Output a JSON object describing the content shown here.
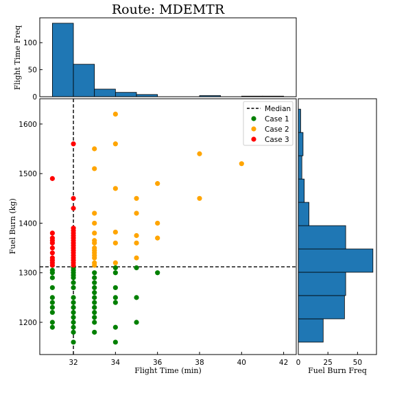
{
  "figure": {
    "title": "Route: MDEMTR"
  },
  "chart_data": [
    {
      "id": "scatter",
      "type": "scatter",
      "xlabel": "Flight Time (min)",
      "ylabel": "Fuel Burn (kg)",
      "xlim": [
        30.4,
        42.6
      ],
      "ylim": [
        1135,
        1651
      ],
      "xticks": [
        32,
        34,
        36,
        38,
        40,
        42
      ],
      "yticks": [
        1200,
        1300,
        1400,
        1500,
        1600
      ],
      "median": {
        "x": 32,
        "y": 1312,
        "label": "Median"
      },
      "legend_position": "top-right",
      "series": [
        {
          "name": "Case 1",
          "color": "#008000",
          "points": [
            [
              31,
              1305
            ],
            [
              31,
              1300
            ],
            [
              31,
              1290
            ],
            [
              31,
              1270
            ],
            [
              31,
              1250
            ],
            [
              31,
              1240
            ],
            [
              31,
              1230
            ],
            [
              31,
              1220
            ],
            [
              31,
              1200
            ],
            [
              31,
              1190
            ],
            [
              32,
              1310
            ],
            [
              32,
              1305
            ],
            [
              32,
              1300
            ],
            [
              32,
              1295
            ],
            [
              32,
              1290
            ],
            [
              32,
              1280
            ],
            [
              32,
              1270
            ],
            [
              32,
              1250
            ],
            [
              32,
              1240
            ],
            [
              32,
              1230
            ],
            [
              32,
              1220
            ],
            [
              32,
              1210
            ],
            [
              32,
              1200
            ],
            [
              32,
              1190
            ],
            [
              32,
              1180
            ],
            [
              32,
              1160
            ],
            [
              33,
              1300
            ],
            [
              33,
              1290
            ],
            [
              33,
              1280
            ],
            [
              33,
              1270
            ],
            [
              33,
              1260
            ],
            [
              33,
              1250
            ],
            [
              33,
              1240
            ],
            [
              33,
              1230
            ],
            [
              33,
              1220
            ],
            [
              33,
              1210
            ],
            [
              33,
              1200
            ],
            [
              33,
              1180
            ],
            [
              34,
              1310
            ],
            [
              34,
              1300
            ],
            [
              34,
              1270
            ],
            [
              34,
              1250
            ],
            [
              34,
              1240
            ],
            [
              34,
              1190
            ],
            [
              34,
              1160
            ],
            [
              35,
              1310
            ],
            [
              35,
              1250
            ],
            [
              35,
              1200
            ],
            [
              36,
              1300
            ]
          ]
        },
        {
          "name": "Case 2",
          "color": "#ffa500",
          "points": [
            [
              33,
              1550
            ],
            [
              33,
              1510
            ],
            [
              33,
              1420
            ],
            [
              33,
              1400
            ],
            [
              33,
              1380
            ],
            [
              33,
              1365
            ],
            [
              33,
              1360
            ],
            [
              33,
              1350
            ],
            [
              33,
              1345
            ],
            [
              33,
              1340
            ],
            [
              33,
              1335
            ],
            [
              33,
              1330
            ],
            [
              33,
              1320
            ],
            [
              33,
              1315
            ],
            [
              34,
              1620
            ],
            [
              34,
              1560
            ],
            [
              34,
              1470
            ],
            [
              34,
              1382
            ],
            [
              34,
              1360
            ],
            [
              34,
              1320
            ],
            [
              35,
              1450
            ],
            [
              35,
              1420
            ],
            [
              35,
              1375
            ],
            [
              35,
              1360
            ],
            [
              35,
              1330
            ],
            [
              36,
              1480
            ],
            [
              36,
              1400
            ],
            [
              36,
              1370
            ],
            [
              38,
              1540
            ],
            [
              38,
              1450
            ],
            [
              40,
              1520
            ]
          ]
        },
        {
          "name": "Case 3",
          "color": "#ff0000",
          "points": [
            [
              31,
              1490
            ],
            [
              31,
              1380
            ],
            [
              31,
              1370
            ],
            [
              31,
              1365
            ],
            [
              31,
              1360
            ],
            [
              31,
              1350
            ],
            [
              31,
              1340
            ],
            [
              31,
              1330
            ],
            [
              31,
              1325
            ],
            [
              31,
              1320
            ],
            [
              31,
              1315
            ],
            [
              32,
              1560
            ],
            [
              32,
              1450
            ],
            [
              32,
              1430
            ],
            [
              32,
              1390
            ],
            [
              32,
              1385
            ],
            [
              32,
              1380
            ],
            [
              32,
              1375
            ],
            [
              32,
              1370
            ],
            [
              32,
              1365
            ],
            [
              32,
              1360
            ],
            [
              32,
              1355
            ],
            [
              32,
              1350
            ],
            [
              32,
              1345
            ],
            [
              32,
              1340
            ],
            [
              32,
              1335
            ],
            [
              32,
              1330
            ],
            [
              32,
              1325
            ],
            [
              32,
              1320
            ],
            [
              32,
              1315
            ]
          ]
        }
      ]
    },
    {
      "id": "top-hist",
      "type": "bar",
      "ylabel": "Flight Time Freq",
      "ylim": [
        0,
        146
      ],
      "yticks": [
        0,
        50,
        100
      ],
      "bins": [
        [
          31,
          32,
          136
        ],
        [
          32,
          33,
          60
        ],
        [
          33,
          34,
          14
        ],
        [
          34,
          35,
          8
        ],
        [
          35,
          36,
          4
        ],
        [
          36,
          37,
          0
        ],
        [
          37,
          38,
          0
        ],
        [
          38,
          39,
          2
        ],
        [
          39,
          40,
          0
        ],
        [
          40,
          41,
          1
        ],
        [
          41,
          42,
          1
        ]
      ]
    },
    {
      "id": "right-hist",
      "type": "bar",
      "xlabel": "Fuel Burn Freq",
      "xlim": [
        0,
        66
      ],
      "xticks": [
        0,
        25,
        50
      ],
      "bins": [
        [
          1160,
          1207,
          21
        ],
        [
          1207,
          1254,
          39
        ],
        [
          1254,
          1301,
          40
        ],
        [
          1301,
          1348,
          63
        ],
        [
          1348,
          1395,
          40
        ],
        [
          1395,
          1442,
          9
        ],
        [
          1442,
          1489,
          5
        ],
        [
          1489,
          1536,
          3
        ],
        [
          1536,
          1583,
          4
        ],
        [
          1583,
          1630,
          2
        ]
      ]
    }
  ]
}
